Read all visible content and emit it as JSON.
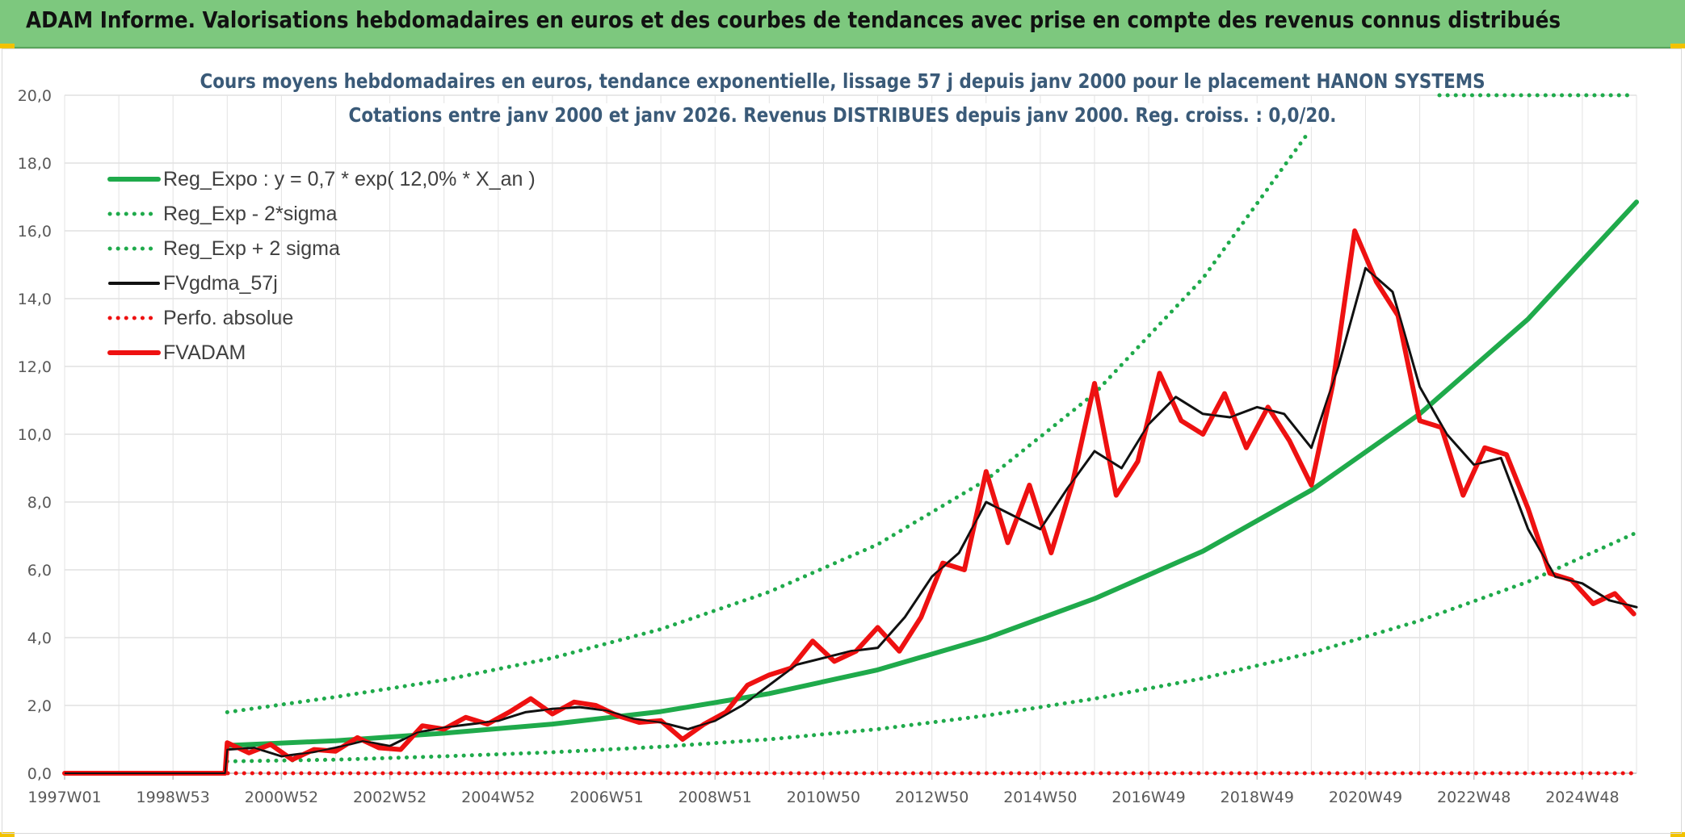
{
  "header": {
    "title": "ADAM Informe. Valorisations hebdomadaires en euros et des courbes de tendances avec prise en compte des revenus connus distribués"
  },
  "colors": {
    "header_bg": "#7dc87e",
    "green": "#1faa4b",
    "red": "#ee1111",
    "black": "#111111",
    "title_text": "#3a5a78"
  },
  "chart_data": {
    "type": "line",
    "title": "Cours moyens hebdomadaires en euros, tendance exponentielle, lissage 57 j depuis janv 2000 pour le placement HANON SYSTEMS",
    "subtitle": "Cotations entre janv 2000 et janv 2026. Revenus DISTRIBUES depuis janv 2000. Reg. croiss. : 0,0/20.",
    "xlabel": "",
    "ylabel": "",
    "xlim": [
      1997.0,
      2026.0
    ],
    "ylim": [
      0,
      20
    ],
    "y_ticks": [
      "0,0",
      "2,0",
      "4,0",
      "6,0",
      "8,0",
      "10,0",
      "12,0",
      "14,0",
      "16,0",
      "18,0",
      "20,0"
    ],
    "x_ticks": [
      {
        "x": 1997.0,
        "label": "1997W01"
      },
      {
        "x": 1999.0,
        "label": "1998W53"
      },
      {
        "x": 2001.0,
        "label": "2000W52"
      },
      {
        "x": 2003.0,
        "label": "2002W52"
      },
      {
        "x": 2005.0,
        "label": "2004W52"
      },
      {
        "x": 2007.0,
        "label": "2006W51"
      },
      {
        "x": 2009.0,
        "label": "2008W51"
      },
      {
        "x": 2011.0,
        "label": "2010W50"
      },
      {
        "x": 2013.0,
        "label": "2012W50"
      },
      {
        "x": 2015.0,
        "label": "2014W50"
      },
      {
        "x": 2017.0,
        "label": "2016W49"
      },
      {
        "x": 2019.0,
        "label": "2018W49"
      },
      {
        "x": 2021.0,
        "label": "2020W49"
      },
      {
        "x": 2023.0,
        "label": "2022W48"
      },
      {
        "x": 2025.0,
        "label": "2024W48"
      }
    ],
    "grid": true,
    "legend_position": "top-left",
    "legend": [
      {
        "name": "Reg_Expo : y = 0,7 * exp( 12,0% *  X_an )",
        "color": "#1faa4b",
        "style": "solid-thick"
      },
      {
        "name": "Reg_Exp - 2*sigma",
        "color": "#1faa4b",
        "style": "dotted"
      },
      {
        "name": "Reg_Exp + 2 sigma",
        "color": "#1faa4b",
        "style": "dotted"
      },
      {
        "name": "FVgdma_57j",
        "color": "#111111",
        "style": "solid-thin"
      },
      {
        "name": "Perfo. absolue",
        "color": "#ee1111",
        "style": "dotted"
      },
      {
        "name": "FVADAM",
        "color": "#ee1111",
        "style": "solid-thick"
      }
    ],
    "series": [
      {
        "name": "Reg_Expo : y = 0,7 * exp( 12,0% *  X_an )",
        "color": "#1faa4b",
        "x": [
          2000.0,
          2002.0,
          2004.0,
          2006.0,
          2008.0,
          2010.0,
          2012.0,
          2014.0,
          2016.0,
          2018.0,
          2020.0,
          2022.0,
          2024.0,
          2026.0
        ],
        "y": [
          0.82,
          0.96,
          1.18,
          1.45,
          1.82,
          2.35,
          3.05,
          3.98,
          5.15,
          6.55,
          8.35,
          10.6,
          13.4,
          16.85
        ]
      },
      {
        "name": "Reg_Exp - 2*sigma",
        "color": "#1faa4b",
        "x": [
          2000.0,
          2002.0,
          2004.0,
          2006.0,
          2008.0,
          2010.0,
          2012.0,
          2014.0,
          2016.0,
          2018.0,
          2020.0,
          2022.0,
          2024.0,
          2026.0
        ],
        "y": [
          0.35,
          0.4,
          0.5,
          0.62,
          0.78,
          1.0,
          1.3,
          1.7,
          2.2,
          2.8,
          3.55,
          4.5,
          5.65,
          7.1
        ]
      },
      {
        "name": "Reg_Exp + 2 sigma",
        "color": "#1faa4b",
        "x": [
          2000.0,
          2002.0,
          2004.0,
          2006.0,
          2008.0,
          2010.0,
          2012.0,
          2014.0,
          2016.0,
          2018.0,
          2019.9
        ],
        "y": [
          1.8,
          2.25,
          2.75,
          3.4,
          4.25,
          5.35,
          6.75,
          8.65,
          11.2,
          14.6,
          18.8
        ]
      },
      {
        "name": "FVgdma_57j",
        "color": "#111111",
        "x": [
          1997.0,
          1999.96,
          2000.0,
          2000.5,
          2001.0,
          2001.5,
          2002.0,
          2002.5,
          2003.0,
          2003.5,
          2004.0,
          2004.5,
          2005.0,
          2005.5,
          2006.0,
          2006.5,
          2007.0,
          2007.5,
          2008.0,
          2008.5,
          2009.0,
          2009.5,
          2010.0,
          2010.5,
          2011.0,
          2011.5,
          2012.0,
          2012.5,
          2013.0,
          2013.5,
          2014.0,
          2014.5,
          2015.0,
          2015.5,
          2016.0,
          2016.5,
          2017.0,
          2017.5,
          2018.0,
          2018.5,
          2019.0,
          2019.5,
          2020.0,
          2020.5,
          2021.0,
          2021.5,
          2022.0,
          2022.5,
          2023.0,
          2023.5,
          2024.0,
          2024.5,
          2025.0,
          2025.5,
          2026.0
        ],
        "y": [
          0.0,
          0.0,
          0.7,
          0.75,
          0.5,
          0.6,
          0.75,
          0.95,
          0.8,
          1.2,
          1.35,
          1.45,
          1.55,
          1.8,
          1.9,
          1.95,
          1.85,
          1.6,
          1.5,
          1.3,
          1.55,
          2.0,
          2.6,
          3.2,
          3.4,
          3.6,
          3.7,
          4.6,
          5.8,
          6.5,
          8.0,
          7.6,
          7.2,
          8.4,
          9.5,
          9.0,
          10.3,
          11.1,
          10.6,
          10.5,
          10.8,
          10.6,
          9.6,
          12.0,
          14.9,
          14.2,
          11.4,
          10.0,
          9.1,
          9.3,
          7.2,
          5.8,
          5.6,
          5.1,
          4.9
        ]
      },
      {
        "name": "Perfo. absolue",
        "color": "#ee1111",
        "x": [
          1997.0,
          1999.96,
          2000.0,
          2026.0
        ],
        "y": [
          0.0,
          0.0,
          0.0,
          0.0
        ]
      },
      {
        "name": "FVADAM",
        "color": "#ee1111",
        "x": [
          1997.0,
          1999.96,
          2000.0,
          2000.4,
          2000.8,
          2001.2,
          2001.6,
          2002.0,
          2002.4,
          2002.8,
          2003.2,
          2003.6,
          2004.0,
          2004.4,
          2004.8,
          2005.2,
          2005.6,
          2006.0,
          2006.4,
          2006.8,
          2007.2,
          2007.6,
          2008.0,
          2008.4,
          2008.8,
          2009.2,
          2009.6,
          2010.0,
          2010.4,
          2010.8,
          2011.2,
          2011.6,
          2012.0,
          2012.4,
          2012.8,
          2013.2,
          2013.6,
          2014.0,
          2014.4,
          2014.8,
          2015.2,
          2015.6,
          2016.0,
          2016.4,
          2016.8,
          2017.2,
          2017.6,
          2018.0,
          2018.4,
          2018.8,
          2019.2,
          2019.6,
          2020.0,
          2020.4,
          2020.8,
          2021.2,
          2021.6,
          2022.0,
          2022.4,
          2022.8,
          2023.2,
          2023.6,
          2024.0,
          2024.4,
          2024.8,
          2025.2,
          2025.6,
          2025.95
        ],
        "y": [
          0.0,
          0.0,
          0.9,
          0.6,
          0.85,
          0.4,
          0.7,
          0.65,
          1.05,
          0.75,
          0.7,
          1.4,
          1.3,
          1.65,
          1.45,
          1.8,
          2.2,
          1.75,
          2.1,
          2.0,
          1.7,
          1.5,
          1.55,
          1.0,
          1.45,
          1.8,
          2.6,
          2.9,
          3.1,
          3.9,
          3.3,
          3.6,
          4.3,
          3.6,
          4.6,
          6.2,
          6.0,
          8.9,
          6.8,
          8.5,
          6.5,
          8.6,
          11.5,
          8.2,
          9.2,
          11.8,
          10.4,
          10.0,
          11.2,
          9.6,
          10.8,
          9.8,
          8.5,
          11.5,
          16.0,
          14.5,
          13.5,
          10.4,
          10.2,
          8.2,
          9.6,
          9.4,
          7.8,
          5.9,
          5.7,
          5.0,
          5.3,
          4.7
        ]
      }
    ]
  }
}
